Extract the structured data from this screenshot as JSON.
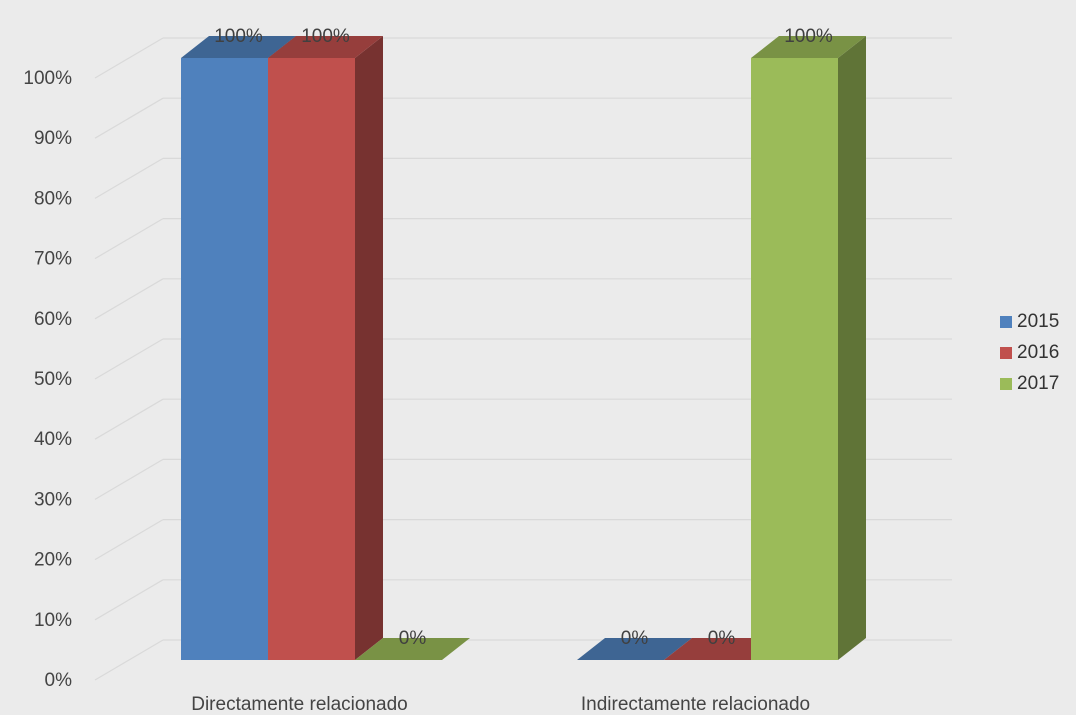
{
  "chart_data": {
    "type": "bar",
    "style": "3d-clustered-column",
    "title": "",
    "xlabel": "",
    "ylabel": "",
    "categories": [
      "Directamente relacionado",
      "Indirectamente relacionado"
    ],
    "series": [
      {
        "name": "2015",
        "color": "#4f81bd",
        "values": [
          100,
          0
        ],
        "labels": [
          "100%",
          "0%"
        ]
      },
      {
        "name": "2016",
        "color": "#c0504d",
        "values": [
          100,
          0
        ],
        "labels": [
          "100%",
          "0%"
        ]
      },
      {
        "name": "2017",
        "color": "#9bbb59",
        "values": [
          0,
          100
        ],
        "labels": [
          "0%",
          "100%"
        ]
      }
    ],
    "ylim": [
      0,
      100
    ],
    "yticks": [
      "0%",
      "10%",
      "20%",
      "30%",
      "40%",
      "50%",
      "60%",
      "70%",
      "80%",
      "90%",
      "100%"
    ],
    "grid": true,
    "legend_position": "right"
  }
}
